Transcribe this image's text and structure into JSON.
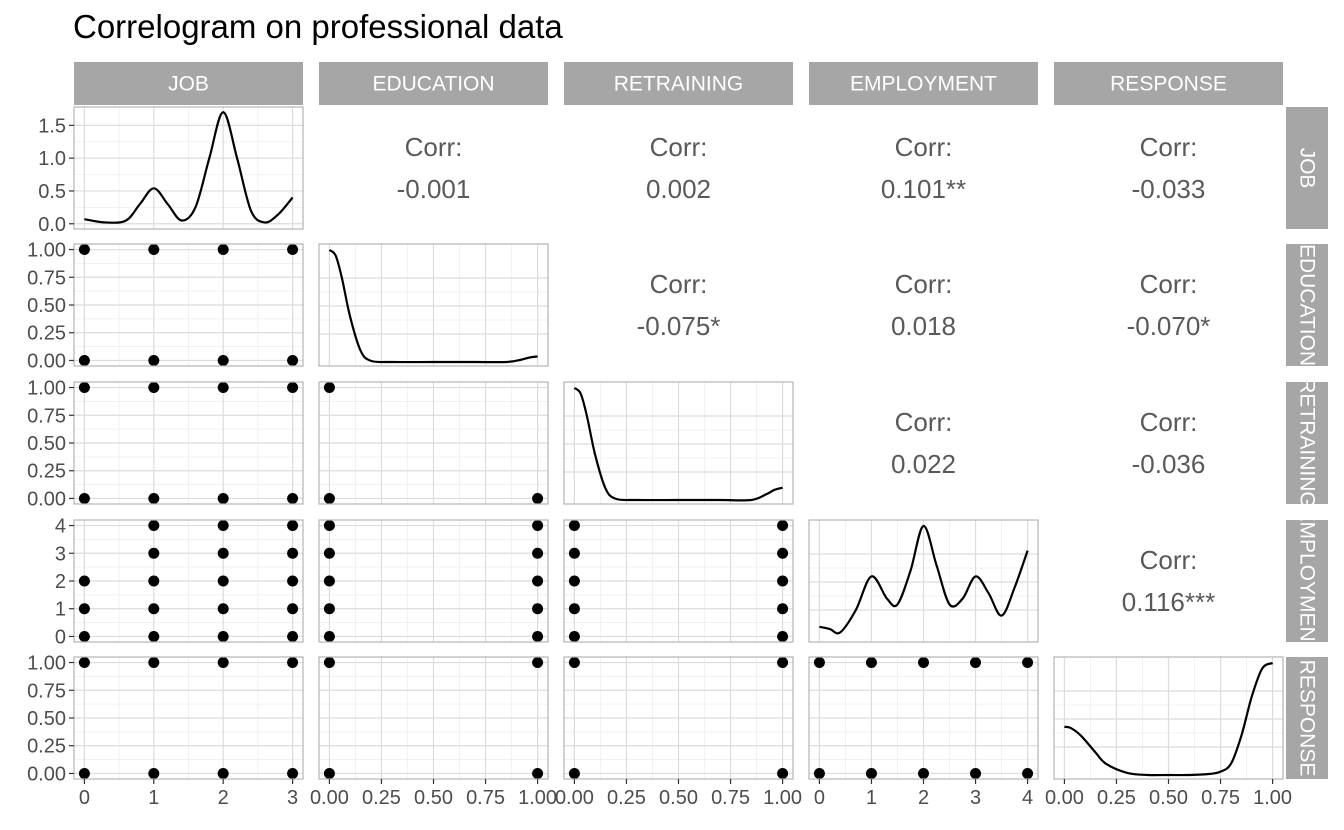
{
  "chart_data": {
    "type": "scatter",
    "title": "Correlogram on professional data",
    "variables": [
      "JOB",
      "EDUCATION",
      "RETRAINING",
      "EMPLOYMENT",
      "RESPONSE"
    ],
    "corr_label": "Corr:",
    "correlations": [
      {
        "row": "JOB",
        "col": "EDUCATION",
        "value": "-0.001"
      },
      {
        "row": "JOB",
        "col": "RETRAINING",
        "value": "0.002"
      },
      {
        "row": "JOB",
        "col": "EMPLOYMENT",
        "value": "0.101**"
      },
      {
        "row": "JOB",
        "col": "RESPONSE",
        "value": "-0.033"
      },
      {
        "row": "EDUCATION",
        "col": "RETRAINING",
        "value": "-0.075*"
      },
      {
        "row": "EDUCATION",
        "col": "EMPLOYMENT",
        "value": "0.018"
      },
      {
        "row": "EDUCATION",
        "col": "RESPONSE",
        "value": "-0.070*"
      },
      {
        "row": "RETRAINING",
        "col": "EMPLOYMENT",
        "value": "0.022"
      },
      {
        "row": "RETRAINING",
        "col": "RESPONSE",
        "value": "-0.036"
      },
      {
        "row": "EMPLOYMENT",
        "col": "RESPONSE",
        "value": "0.116***"
      }
    ],
    "axes": {
      "JOB": {
        "lim": [
          -0.15,
          3.15
        ],
        "ticks": [
          0,
          1,
          2,
          3
        ],
        "tick_labels": [
          "0",
          "1",
          "2",
          "3"
        ]
      },
      "EDUCATION": {
        "lim": [
          -0.05,
          1.05
        ],
        "ticks": [
          0,
          0.25,
          0.5,
          0.75,
          1
        ],
        "tick_labels": [
          "0.00",
          "0.25",
          "0.50",
          "0.75",
          "1.00"
        ]
      },
      "RETRAINING": {
        "lim": [
          -0.05,
          1.05
        ],
        "ticks": [
          0,
          0.25,
          0.5,
          0.75,
          1
        ],
        "tick_labels": [
          "0.00",
          "0.25",
          "0.50",
          "0.75",
          "1.00"
        ]
      },
      "EMPLOYMENT": {
        "lim": [
          -0.2,
          4.2
        ],
        "ticks": [
          0,
          1,
          2,
          3,
          4
        ],
        "tick_labels": [
          "0",
          "1",
          "2",
          "3",
          "4"
        ]
      },
      "RESPONSE": {
        "lim": [
          -0.05,
          1.05
        ],
        "ticks": [
          0,
          0.25,
          0.5,
          0.75,
          1
        ],
        "tick_labels": [
          "0.00",
          "0.25",
          "0.50",
          "0.75",
          "1.00"
        ]
      }
    },
    "density_axis": {
      "lim": [
        -0.08,
        1.78
      ],
      "ticks": [
        0,
        0.5,
        1,
        1.5
      ],
      "tick_labels": [
        "0.0",
        "0.5",
        "1.0",
        "1.5"
      ]
    },
    "densities": {
      "JOB": {
        "x": [
          0,
          0.3,
          0.6,
          0.8,
          1,
          1.2,
          1.4,
          1.6,
          1.8,
          2,
          2.2,
          2.4,
          2.6,
          2.8,
          3
        ],
        "y": [
          0.07,
          0.02,
          0.05,
          0.3,
          0.54,
          0.3,
          0.05,
          0.25,
          1.0,
          1.7,
          1.0,
          0.2,
          0.02,
          0.15,
          0.4
        ]
      },
      "EDUCATION": {
        "x": [
          0,
          0.03,
          0.06,
          0.1,
          0.15,
          0.2,
          0.3,
          0.5,
          0.7,
          0.85,
          0.92,
          0.96,
          1
        ],
        "y": [
          1.0,
          0.95,
          0.75,
          0.4,
          0.1,
          0.01,
          0.0,
          0.0,
          0.0,
          0.0,
          0.02,
          0.04,
          0.05
        ]
      },
      "RETRAINING": {
        "x": [
          0,
          0.03,
          0.06,
          0.1,
          0.15,
          0.2,
          0.3,
          0.5,
          0.7,
          0.85,
          0.92,
          0.96,
          1
        ],
        "y": [
          1.0,
          0.95,
          0.75,
          0.4,
          0.1,
          0.01,
          0.0,
          0.0,
          0.0,
          0.0,
          0.05,
          0.09,
          0.11
        ]
      },
      "EMPLOYMENT": {
        "x": [
          0,
          0.2,
          0.4,
          0.7,
          1,
          1.3,
          1.5,
          1.75,
          2,
          2.25,
          2.5,
          2.75,
          3,
          3.25,
          3.5,
          3.75,
          4
        ],
        "y": [
          0.1,
          0.08,
          0.05,
          0.25,
          0.55,
          0.35,
          0.3,
          0.6,
          1.0,
          0.65,
          0.3,
          0.35,
          0.55,
          0.4,
          0.2,
          0.45,
          0.78
        ]
      },
      "RESPONSE": {
        "x": [
          0,
          0.03,
          0.08,
          0.15,
          0.2,
          0.3,
          0.4,
          0.5,
          0.6,
          0.7,
          0.75,
          0.8,
          0.85,
          0.9,
          0.95,
          1
        ],
        "y": [
          0.43,
          0.42,
          0.35,
          0.2,
          0.1,
          0.02,
          0.0,
          0.0,
          0.0,
          0.01,
          0.03,
          0.1,
          0.35,
          0.7,
          0.95,
          1.0
        ]
      }
    },
    "scatter": [
      {
        "row": "EDUCATION",
        "col": "JOB",
        "points": [
          [
            0,
            0
          ],
          [
            1,
            0
          ],
          [
            2,
            0
          ],
          [
            3,
            0
          ],
          [
            0,
            1
          ],
          [
            1,
            1
          ],
          [
            2,
            1
          ],
          [
            3,
            1
          ]
        ]
      },
      {
        "row": "RETRAINING",
        "col": "JOB",
        "points": [
          [
            0,
            0
          ],
          [
            1,
            0
          ],
          [
            2,
            0
          ],
          [
            3,
            0
          ],
          [
            0,
            1
          ],
          [
            1,
            1
          ],
          [
            2,
            1
          ],
          [
            3,
            1
          ]
        ]
      },
      {
        "row": "RETRAINING",
        "col": "EDUCATION",
        "points": [
          [
            0,
            0
          ],
          [
            1,
            0
          ],
          [
            0,
            1
          ]
        ]
      },
      {
        "row": "EMPLOYMENT",
        "col": "JOB",
        "points": [
          [
            0,
            0
          ],
          [
            0,
            1
          ],
          [
            0,
            2
          ],
          [
            1,
            0
          ],
          [
            1,
            1
          ],
          [
            1,
            2
          ],
          [
            1,
            3
          ],
          [
            1,
            4
          ],
          [
            2,
            0
          ],
          [
            2,
            1
          ],
          [
            2,
            2
          ],
          [
            2,
            3
          ],
          [
            2,
            4
          ],
          [
            3,
            0
          ],
          [
            3,
            1
          ],
          [
            3,
            2
          ],
          [
            3,
            3
          ],
          [
            3,
            4
          ]
        ]
      },
      {
        "row": "EMPLOYMENT",
        "col": "EDUCATION",
        "points": [
          [
            0,
            0
          ],
          [
            0,
            1
          ],
          [
            0,
            2
          ],
          [
            0,
            3
          ],
          [
            0,
            4
          ],
          [
            1,
            0
          ],
          [
            1,
            1
          ],
          [
            1,
            2
          ],
          [
            1,
            3
          ],
          [
            1,
            4
          ]
        ]
      },
      {
        "row": "EMPLOYMENT",
        "col": "RETRAINING",
        "points": [
          [
            0,
            0
          ],
          [
            0,
            1
          ],
          [
            0,
            2
          ],
          [
            0,
            3
          ],
          [
            0,
            4
          ],
          [
            1,
            0
          ],
          [
            1,
            1
          ],
          [
            1,
            2
          ],
          [
            1,
            3
          ],
          [
            1,
            4
          ]
        ]
      },
      {
        "row": "RESPONSE",
        "col": "JOB",
        "points": [
          [
            0,
            0
          ],
          [
            1,
            0
          ],
          [
            2,
            0
          ],
          [
            3,
            0
          ],
          [
            0,
            1
          ],
          [
            1,
            1
          ],
          [
            2,
            1
          ],
          [
            3,
            1
          ]
        ]
      },
      {
        "row": "RESPONSE",
        "col": "EDUCATION",
        "points": [
          [
            0,
            0
          ],
          [
            1,
            0
          ],
          [
            0,
            1
          ],
          [
            1,
            1
          ]
        ]
      },
      {
        "row": "RESPONSE",
        "col": "RETRAINING",
        "points": [
          [
            0,
            0
          ],
          [
            1,
            0
          ],
          [
            0,
            1
          ],
          [
            1,
            1
          ]
        ]
      },
      {
        "row": "RESPONSE",
        "col": "EMPLOYMENT",
        "points": [
          [
            0,
            0
          ],
          [
            1,
            0
          ],
          [
            2,
            0
          ],
          [
            3,
            0
          ],
          [
            4,
            0
          ],
          [
            0,
            1
          ],
          [
            1,
            1
          ],
          [
            2,
            1
          ],
          [
            3,
            1
          ],
          [
            4,
            1
          ]
        ]
      }
    ],
    "grid": true,
    "legend": "none"
  }
}
